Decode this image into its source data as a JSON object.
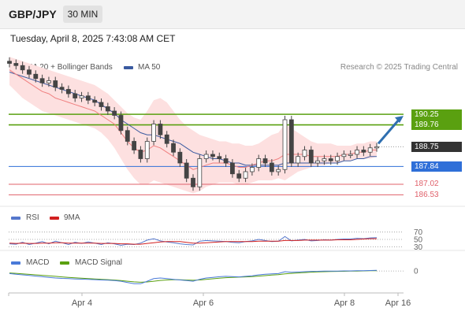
{
  "header": {
    "symbol": "GBP/JPY",
    "timeframe": "30 MIN"
  },
  "datetime": "Tuesday, April 8, 2025 7:43:08 AM CET",
  "legend_main": {
    "ma20_label": "MA 20 + Bollinger Bands",
    "ma50_label": "MA 50",
    "copyright": "Research © 2025 Trading Central"
  },
  "legend_rsi": {
    "rsi_label": "RSI",
    "ma_label": "9MA"
  },
  "legend_macd": {
    "macd_label": "MACD",
    "signal_label": "MACD Signal"
  },
  "colors": {
    "ma20": "#f08080",
    "ma50": "#3a5aa0",
    "resistance": "#5aa010",
    "support": "#2f6fd8",
    "support_red": "#e0606a",
    "price": "#333333",
    "bollinger": "#fde0e0",
    "rsi": "#5577cc",
    "rsi_ma": "#d22020",
    "macd": "#4a7ad8",
    "macd_signal": "#5aa010"
  },
  "chart_data": {
    "type": "candlestick",
    "y_price_range": [
      186.0,
      192.0
    ],
    "levels": [
      {
        "value": 190.25,
        "label": "190.25",
        "kind": "resistance"
      },
      {
        "value": 189.76,
        "label": "189.76",
        "kind": "resistance"
      },
      {
        "value": 188.75,
        "label": "188.75",
        "kind": "last-price"
      },
      {
        "value": 187.84,
        "label": "187.84",
        "kind": "support"
      },
      {
        "value": 187.02,
        "label": "187.02",
        "kind": "support-red"
      },
      {
        "value": 186.53,
        "label": "186.53",
        "kind": "support-red"
      }
    ],
    "x_ticks": [
      "Apr 4",
      "Apr 6",
      "Apr 8",
      "Apr 16"
    ],
    "close": [
      192.6,
      192.5,
      192.3,
      192.1,
      191.9,
      191.7,
      191.8,
      191.5,
      191.4,
      191.2,
      191.0,
      191.1,
      190.9,
      190.8,
      190.6,
      190.4,
      190.2,
      189.5,
      189.0,
      188.6,
      188.2,
      189.0,
      189.8,
      189.3,
      188.9,
      188.5,
      188.0,
      187.3,
      186.9,
      188.2,
      188.4,
      188.3,
      188.2,
      188.0,
      187.5,
      187.3,
      187.6,
      187.8,
      188.2,
      188.0,
      187.6,
      187.7,
      190.0,
      188.0,
      188.3,
      188.6,
      188.0,
      188.1,
      188.2,
      188.1,
      188.3,
      188.4,
      188.4,
      188.6,
      188.5,
      188.7,
      188.75
    ],
    "bb_upper": [
      192.9,
      192.8,
      192.7,
      192.6,
      192.5,
      192.4,
      192.3,
      192.2,
      192.1,
      192.0,
      191.9,
      191.8,
      191.7,
      191.6,
      191.4,
      191.2,
      190.9,
      190.6,
      190.3,
      190.1,
      190.0,
      190.4,
      190.9,
      191.0,
      190.8,
      190.4,
      190.0,
      189.7,
      189.5,
      189.3,
      189.2,
      189.1,
      189.0,
      189.0,
      188.9,
      188.9,
      188.8,
      188.8,
      188.9,
      189.1,
      189.3,
      189.4,
      189.8,
      189.6,
      189.4,
      189.2,
      189.0,
      188.9,
      188.9,
      188.9,
      188.8,
      188.8,
      188.8,
      188.9,
      188.9,
      189.0,
      189.0
    ],
    "bb_lower": [
      191.6,
      191.3,
      191.0,
      190.8,
      190.6,
      190.4,
      190.3,
      190.2,
      190.1,
      190.0,
      189.9,
      189.8,
      189.7,
      189.6,
      189.4,
      189.1,
      188.7,
      188.2,
      187.7,
      187.3,
      187.0,
      187.0,
      187.2,
      187.1,
      187.0,
      186.9,
      186.8,
      186.7,
      186.6,
      186.7,
      186.9,
      187.0,
      187.1,
      187.1,
      187.1,
      187.0,
      187.0,
      187.1,
      187.2,
      187.2,
      187.2,
      187.3,
      187.2,
      187.4,
      187.6,
      187.7,
      187.8,
      187.9,
      187.9,
      188.0,
      188.0,
      188.1,
      188.1,
      188.2,
      188.2,
      188.2,
      188.3
    ],
    "ma20": [
      192.3,
      192.1,
      191.9,
      191.7,
      191.5,
      191.3,
      191.2,
      191.0,
      190.9,
      190.8,
      190.7,
      190.6,
      190.5,
      190.4,
      190.2,
      190.0,
      189.8,
      189.4,
      189.0,
      188.7,
      188.5,
      188.6,
      188.8,
      188.7,
      188.5,
      188.3,
      188.1,
      187.9,
      187.7,
      187.8,
      187.9,
      188.0,
      188.0,
      188.0,
      187.9,
      187.8,
      187.8,
      187.9,
      188.0,
      188.1,
      188.1,
      188.2,
      188.4,
      188.4,
      188.4,
      188.4,
      188.3,
      188.3,
      188.3,
      188.3,
      188.3,
      188.4,
      188.4,
      188.5,
      188.5,
      188.6,
      188.6
    ],
    "ma50": [
      192.2,
      192.1,
      192.0,
      191.9,
      191.8,
      191.7,
      191.6,
      191.5,
      191.4,
      191.3,
      191.2,
      191.1,
      191.0,
      190.9,
      190.7,
      190.5,
      190.3,
      190.0,
      189.8,
      189.6,
      189.4,
      189.3,
      189.3,
      189.2,
      189.1,
      189.0,
      188.9,
      188.7,
      188.5,
      188.4,
      188.3,
      188.2,
      188.2,
      188.1,
      188.0,
      188.0,
      187.9,
      187.9,
      187.9,
      187.9,
      187.9,
      187.9,
      188.0,
      188.0,
      188.0,
      188.0,
      188.0,
      188.0,
      188.0,
      188.0,
      188.0,
      188.1,
      188.1,
      188.2,
      188.2,
      188.3,
      188.3
    ],
    "rsi": {
      "levels": [
        70,
        50,
        30
      ],
      "y_range": [
        20,
        80
      ],
      "values": [
        38,
        37,
        42,
        36,
        40,
        44,
        38,
        45,
        41,
        36,
        42,
        39,
        43,
        40,
        36,
        41,
        38,
        34,
        37,
        36,
        40,
        48,
        52,
        46,
        43,
        41,
        38,
        36,
        35,
        45,
        47,
        46,
        45,
        44,
        42,
        41,
        44,
        46,
        50,
        47,
        44,
        45,
        58,
        46,
        48,
        50,
        46,
        47,
        49,
        48,
        50,
        51,
        51,
        53,
        52,
        54,
        55
      ],
      "ma_values": [
        40,
        39,
        40,
        39,
        39,
        40,
        40,
        41,
        41,
        40,
        40,
        40,
        40,
        40,
        39,
        39,
        39,
        38,
        38,
        37,
        37,
        39,
        41,
        43,
        44,
        44,
        44,
        42,
        40,
        40,
        41,
        42,
        43,
        44,
        44,
        44,
        44,
        44,
        45,
        45,
        45,
        45,
        47,
        47,
        47,
        48,
        48,
        48,
        48,
        48,
        49,
        49,
        49,
        50,
        51,
        52,
        52
      ]
    },
    "macd": {
      "zero_label": "0",
      "y_range": [
        -1.6,
        1.0
      ],
      "macd_values": [
        -0.2,
        -0.25,
        -0.3,
        -0.35,
        -0.4,
        -0.45,
        -0.5,
        -0.55,
        -0.58,
        -0.6,
        -0.62,
        -0.64,
        -0.66,
        -0.68,
        -0.7,
        -0.72,
        -0.75,
        -0.8,
        -0.9,
        -1.0,
        -1.0,
        -0.8,
        -0.6,
        -0.55,
        -0.6,
        -0.65,
        -0.7,
        -0.75,
        -0.8,
        -0.65,
        -0.55,
        -0.5,
        -0.45,
        -0.42,
        -0.44,
        -0.46,
        -0.42,
        -0.38,
        -0.3,
        -0.25,
        -0.22,
        -0.2,
        -0.05,
        -0.1,
        -0.08,
        -0.05,
        -0.03,
        -0.02,
        0.0,
        0.0,
        0.0,
        0.01,
        0.01,
        0.02,
        0.03,
        0.04,
        0.05
      ],
      "signal_values": [
        -0.15,
        -0.18,
        -0.22,
        -0.26,
        -0.3,
        -0.34,
        -0.38,
        -0.42,
        -0.46,
        -0.5,
        -0.53,
        -0.56,
        -0.59,
        -0.62,
        -0.65,
        -0.68,
        -0.71,
        -0.75,
        -0.8,
        -0.85,
        -0.88,
        -0.86,
        -0.8,
        -0.74,
        -0.7,
        -0.68,
        -0.69,
        -0.71,
        -0.73,
        -0.7,
        -0.66,
        -0.61,
        -0.56,
        -0.52,
        -0.5,
        -0.48,
        -0.46,
        -0.44,
        -0.4,
        -0.36,
        -0.32,
        -0.28,
        -0.22,
        -0.18,
        -0.15,
        -0.12,
        -0.09,
        -0.07,
        -0.05,
        -0.04,
        -0.03,
        -0.02,
        -0.01,
        0.0,
        0.01,
        0.02,
        0.03
      ]
    }
  }
}
